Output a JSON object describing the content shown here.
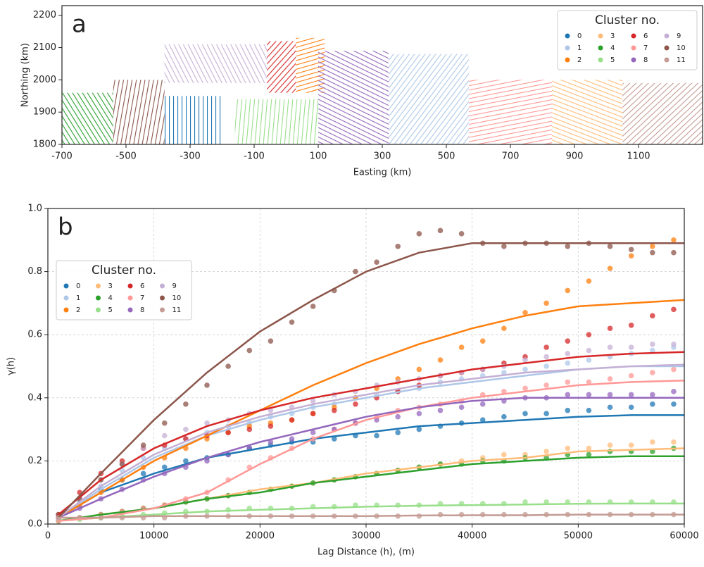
{
  "chart_data": [
    {
      "type": "map",
      "panel_label": "a",
      "xlabel": "Easting (km)",
      "ylabel": "Northing (km)",
      "xlim": [
        -700,
        1300
      ],
      "xticks": [
        -700,
        -500,
        -300,
        -100,
        100,
        300,
        500,
        700,
        900,
        1100
      ],
      "ylim": [
        1800,
        2230
      ],
      "yticks": [
        1800,
        1900,
        2000,
        2100,
        2200
      ],
      "legend_title": "Cluster no.",
      "legend": "upper right",
      "series": [
        {
          "name": "0",
          "color": "#1f77b4",
          "xrange": [
            -380,
            -200
          ],
          "yrange": [
            1800,
            1950
          ]
        },
        {
          "name": "1",
          "color": "#aec7e8",
          "xrange": [
            320,
            570
          ],
          "yrange": [
            1800,
            2080
          ]
        },
        {
          "name": "2",
          "color": "#ff7f0e",
          "xrange": [
            30,
            120
          ],
          "yrange": [
            1960,
            2130
          ]
        },
        {
          "name": "3",
          "color": "#ffbb78",
          "xrange": [
            830,
            1050
          ],
          "yrange": [
            1800,
            2000
          ]
        },
        {
          "name": "4",
          "color": "#2ca02c",
          "xrange": [
            -700,
            -540
          ],
          "yrange": [
            1800,
            1960
          ]
        },
        {
          "name": "5",
          "color": "#98df8a",
          "xrange": [
            -160,
            100
          ],
          "yrange": [
            1800,
            1940
          ]
        },
        {
          "name": "6",
          "color": "#d62728",
          "xrange": [
            -60,
            30
          ],
          "yrange": [
            1960,
            2120
          ]
        },
        {
          "name": "7",
          "color": "#ff9896",
          "xrange": [
            570,
            830
          ],
          "yrange": [
            1800,
            2000
          ]
        },
        {
          "name": "8",
          "color": "#9467bd",
          "xrange": [
            100,
            320
          ],
          "yrange": [
            1800,
            2090
          ]
        },
        {
          "name": "9",
          "color": "#c5b0d5",
          "xrange": [
            -380,
            -60
          ],
          "yrange": [
            1990,
            2110
          ]
        },
        {
          "name": "10",
          "color": "#8c564b",
          "xrange": [
            -540,
            -380
          ],
          "yrange": [
            1800,
            2000
          ]
        },
        {
          "name": "11",
          "color": "#c49c94",
          "xrange": [
            1050,
            1300
          ],
          "yrange": [
            1800,
            1990
          ]
        }
      ]
    },
    {
      "type": "variogram",
      "panel_label": "b",
      "xlabel": "Lag Distance (h), (m)",
      "ylabel": "γ(h)",
      "xlim": [
        0,
        60000
      ],
      "xticks": [
        0,
        10000,
        20000,
        30000,
        40000,
        50000,
        60000
      ],
      "ylim": [
        0,
        1
      ],
      "yticks": [
        {
          "value": 0,
          "label": "0.0"
        },
        {
          "value": 0.2,
          "label": "0.2"
        },
        {
          "value": 0.4,
          "label": "0.4"
        },
        {
          "value": 0.6,
          "label": "0.6"
        },
        {
          "value": 0.8,
          "label": "0.8"
        },
        {
          "value": 1,
          "label": "1.0"
        }
      ],
      "grid": true,
      "legend_title": "Cluster no.",
      "legend": "upper left",
      "x": [
        1000,
        3000,
        5000,
        7000,
        9000,
        11000,
        13000,
        15000,
        17000,
        19000,
        21000,
        23000,
        25000,
        27000,
        29000,
        31000,
        33000,
        35000,
        37000,
        39000,
        41000,
        43000,
        45000,
        47000,
        49000,
        51000,
        53000,
        55000,
        57000,
        59000
      ],
      "fit_x": [
        1000,
        5000,
        10000,
        15000,
        20000,
        25000,
        30000,
        35000,
        40000,
        45000,
        50000,
        55000,
        60000
      ],
      "series": [
        {
          "name": "0",
          "color": "#1f77b4",
          "values": [
            0.02,
            0.07,
            0.11,
            0.14,
            0.16,
            0.18,
            0.2,
            0.21,
            0.22,
            0.24,
            0.25,
            0.26,
            0.26,
            0.27,
            0.28,
            0.28,
            0.29,
            0.3,
            0.31,
            0.32,
            0.33,
            0.34,
            0.35,
            0.35,
            0.36,
            0.36,
            0.37,
            0.37,
            0.38,
            0.38
          ],
          "fit": [
            0.02,
            0.1,
            0.16,
            0.21,
            0.24,
            0.27,
            0.29,
            0.31,
            0.32,
            0.33,
            0.34,
            0.345,
            0.345
          ]
        },
        {
          "name": "1",
          "color": "#aec7e8",
          "values": [
            0.02,
            0.07,
            0.12,
            0.17,
            0.21,
            0.24,
            0.27,
            0.29,
            0.31,
            0.32,
            0.34,
            0.35,
            0.37,
            0.38,
            0.4,
            0.41,
            0.42,
            0.43,
            0.45,
            0.46,
            0.47,
            0.48,
            0.49,
            0.5,
            0.51,
            0.52,
            0.53,
            0.54,
            0.55,
            0.56
          ],
          "fit": [
            0.02,
            0.11,
            0.21,
            0.28,
            0.33,
            0.37,
            0.4,
            0.43,
            0.45,
            0.47,
            0.49,
            0.5,
            0.5
          ]
        },
        {
          "name": "2",
          "color": "#ff7f0e",
          "values": [
            0.02,
            0.06,
            0.1,
            0.14,
            0.18,
            0.21,
            0.24,
            0.27,
            0.29,
            0.31,
            0.32,
            0.33,
            0.35,
            0.37,
            0.4,
            0.43,
            0.46,
            0.49,
            0.52,
            0.56,
            0.58,
            0.62,
            0.67,
            0.7,
            0.74,
            0.77,
            0.81,
            0.85,
            0.88,
            0.9
          ],
          "fit": [
            0.02,
            0.1,
            0.2,
            0.28,
            0.36,
            0.44,
            0.51,
            0.57,
            0.62,
            0.66,
            0.69,
            0.7,
            0.71
          ]
        },
        {
          "name": "3",
          "color": "#ffbb78",
          "values": [
            0.01,
            0.02,
            0.03,
            0.04,
            0.05,
            0.06,
            0.07,
            0.08,
            0.09,
            0.1,
            0.11,
            0.12,
            0.13,
            0.14,
            0.15,
            0.16,
            0.17,
            0.18,
            0.19,
            0.2,
            0.21,
            0.22,
            0.22,
            0.23,
            0.24,
            0.24,
            0.25,
            0.25,
            0.26,
            0.26
          ],
          "fit": [
            0.01,
            0.03,
            0.05,
            0.08,
            0.11,
            0.13,
            0.16,
            0.18,
            0.2,
            0.21,
            0.23,
            0.235,
            0.24
          ]
        },
        {
          "name": "4",
          "color": "#2ca02c",
          "values": [
            0.01,
            0.02,
            0.03,
            0.04,
            0.05,
            0.06,
            0.07,
            0.08,
            0.09,
            0.1,
            0.11,
            0.12,
            0.13,
            0.14,
            0.15,
            0.16,
            0.17,
            0.18,
            0.19,
            0.19,
            0.2,
            0.2,
            0.21,
            0.21,
            0.22,
            0.22,
            0.23,
            0.23,
            0.23,
            0.24
          ],
          "fit": [
            0.01,
            0.03,
            0.05,
            0.08,
            0.1,
            0.13,
            0.15,
            0.17,
            0.19,
            0.2,
            0.21,
            0.215,
            0.215
          ]
        },
        {
          "name": "5",
          "color": "#98df8a",
          "values": [
            0.01,
            0.015,
            0.02,
            0.025,
            0.03,
            0.035,
            0.04,
            0.04,
            0.045,
            0.05,
            0.05,
            0.05,
            0.055,
            0.055,
            0.06,
            0.06,
            0.06,
            0.06,
            0.065,
            0.065,
            0.065,
            0.065,
            0.07,
            0.07,
            0.07,
            0.07,
            0.07,
            0.07,
            0.07,
            0.07
          ],
          "fit": [
            0.01,
            0.02,
            0.03,
            0.04,
            0.045,
            0.05,
            0.055,
            0.058,
            0.06,
            0.062,
            0.064,
            0.065,
            0.065
          ]
        },
        {
          "name": "6",
          "color": "#d62728",
          "values": [
            0.03,
            0.1,
            0.16,
            0.2,
            0.24,
            0.25,
            0.27,
            0.28,
            0.29,
            0.3,
            0.31,
            0.33,
            0.35,
            0.36,
            0.38,
            0.4,
            0.42,
            0.44,
            0.47,
            0.48,
            0.49,
            0.51,
            0.53,
            0.56,
            0.58,
            0.6,
            0.62,
            0.63,
            0.66,
            0.68
          ],
          "fit": [
            0.03,
            0.14,
            0.24,
            0.31,
            0.36,
            0.4,
            0.43,
            0.46,
            0.49,
            0.51,
            0.53,
            0.54,
            0.545
          ]
        },
        {
          "name": "7",
          "color": "#ff9896",
          "values": [
            0.01,
            0.02,
            0.03,
            0.04,
            0.05,
            0.06,
            0.08,
            0.1,
            0.14,
            0.18,
            0.21,
            0.24,
            0.27,
            0.3,
            0.32,
            0.34,
            0.36,
            0.37,
            0.38,
            0.39,
            0.41,
            0.42,
            0.43,
            0.44,
            0.45,
            0.45,
            0.46,
            0.47,
            0.48,
            0.49
          ],
          "fit": [
            0.01,
            0.02,
            0.05,
            0.1,
            0.19,
            0.27,
            0.33,
            0.37,
            0.4,
            0.42,
            0.44,
            0.45,
            0.455
          ]
        },
        {
          "name": "8",
          "color": "#9467bd",
          "values": [
            0.02,
            0.05,
            0.08,
            0.11,
            0.14,
            0.16,
            0.18,
            0.2,
            0.22,
            0.24,
            0.26,
            0.27,
            0.29,
            0.3,
            0.32,
            0.33,
            0.34,
            0.35,
            0.36,
            0.37,
            0.38,
            0.39,
            0.4,
            0.4,
            0.41,
            0.41,
            0.41,
            0.41,
            0.41,
            0.42
          ],
          "fit": [
            0.02,
            0.08,
            0.15,
            0.21,
            0.26,
            0.3,
            0.34,
            0.37,
            0.39,
            0.4,
            0.4,
            0.4,
            0.4
          ]
        },
        {
          "name": "9",
          "color": "#c5b0d5",
          "values": [
            0.02,
            0.08,
            0.14,
            0.19,
            0.24,
            0.28,
            0.3,
            0.32,
            0.33,
            0.35,
            0.36,
            0.37,
            0.39,
            0.41,
            0.42,
            0.44,
            0.45,
            0.46,
            0.47,
            0.48,
            0.49,
            0.5,
            0.52,
            0.53,
            0.54,
            0.55,
            0.56,
            0.56,
            0.57,
            0.57
          ],
          "fit": [
            0.02,
            0.12,
            0.22,
            0.29,
            0.34,
            0.38,
            0.41,
            0.44,
            0.46,
            0.48,
            0.49,
            0.5,
            0.505
          ]
        },
        {
          "name": "10",
          "color": "#8c564b",
          "values": [
            0.03,
            0.08,
            0.14,
            0.19,
            0.25,
            0.32,
            0.38,
            0.44,
            0.5,
            0.55,
            0.58,
            0.64,
            0.69,
            0.74,
            0.8,
            0.83,
            0.88,
            0.92,
            0.93,
            0.92,
            0.89,
            0.88,
            0.89,
            0.89,
            0.88,
            0.89,
            0.88,
            0.87,
            0.86,
            0.86
          ],
          "fit": [
            0.02,
            0.16,
            0.33,
            0.48,
            0.61,
            0.71,
            0.8,
            0.86,
            0.89,
            0.89,
            0.89,
            0.89,
            0.89
          ]
        },
        {
          "name": "11",
          "color": "#c49c94",
          "values": [
            0.02,
            0.02,
            0.02,
            0.02,
            0.02,
            0.02,
            0.025,
            0.025,
            0.025,
            0.025,
            0.025,
            0.025,
            0.025,
            0.025,
            0.025,
            0.025,
            0.025,
            0.025,
            0.03,
            0.03,
            0.03,
            0.03,
            0.03,
            0.03,
            0.03,
            0.03,
            0.03,
            0.03,
            0.03,
            0.03
          ],
          "fit": [
            0.02,
            0.02,
            0.025,
            0.025,
            0.025,
            0.025,
            0.025,
            0.027,
            0.028,
            0.028,
            0.03,
            0.03,
            0.03
          ]
        }
      ]
    }
  ]
}
